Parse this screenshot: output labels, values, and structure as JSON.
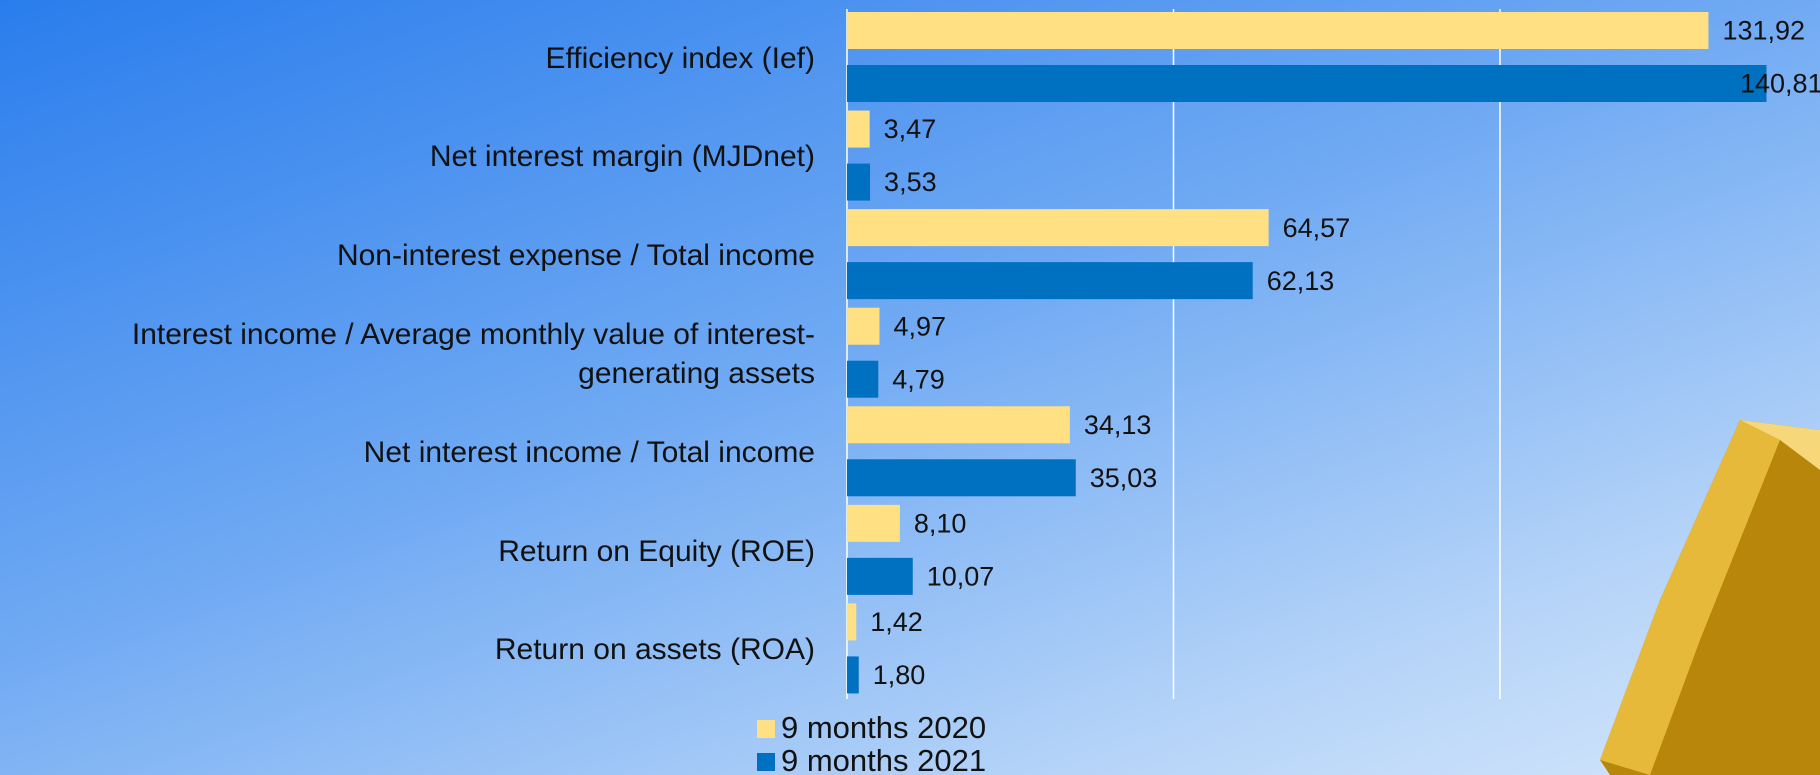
{
  "chart_data": {
    "type": "hbar",
    "categories": [
      "Efficiency index (Ief)",
      "Net interest margin (MJDnet)",
      "Non-interest expense / Total income",
      "Interest income / Average monthly value of interest-generating assets",
      "Net interest income / Total income",
      "Return on Equity (ROE)",
      "Return on assets (ROA)"
    ],
    "series": [
      {
        "name": "9 months 2020",
        "color": "#ffe083",
        "values": [
          131.92,
          3.47,
          64.57,
          4.97,
          34.13,
          8.1,
          1.42
        ],
        "value_labels": [
          "131,92",
          "3,47",
          "64,57",
          "4,97",
          "34,13",
          "8,10",
          "1,42"
        ]
      },
      {
        "name": "9 months 2021",
        "color": "#0070c0",
        "values": [
          140.81,
          3.53,
          62.13,
          4.79,
          35.03,
          10.07,
          1.8
        ],
        "value_labels": [
          "140,81",
          "3,53",
          "62,13",
          "4,79",
          "35,03",
          "10,07",
          "1,80"
        ]
      }
    ],
    "xlim": [
      0,
      150
    ],
    "xticks": [
      0,
      50,
      100
    ],
    "grid": true
  }
}
